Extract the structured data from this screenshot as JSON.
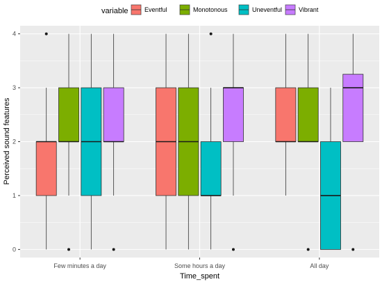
{
  "chart_data": {
    "type": "boxplot",
    "xlabel": "Time_spent",
    "ylabel": "Perceived sound features",
    "ylim": [
      -0.15,
      4.15
    ],
    "yticks": [
      0,
      1,
      2,
      3,
      4
    ],
    "grid": true,
    "legend": {
      "title": "variable",
      "position": "top"
    },
    "categories": [
      "Few minutes a day",
      "Some hours a day",
      "All day"
    ],
    "series": [
      {
        "name": "Eventful",
        "color": "#F8766D",
        "boxes": [
          {
            "whisker_low": 0,
            "q1": 1,
            "median": 2,
            "q3": 2,
            "whisker_high": 3,
            "outliers": [
              4
            ]
          },
          {
            "whisker_low": 0,
            "q1": 1,
            "median": 2,
            "q3": 3,
            "whisker_high": 4,
            "outliers": []
          },
          {
            "whisker_low": 1,
            "q1": 2,
            "median": 2,
            "q3": 3,
            "whisker_high": 4,
            "outliers": []
          }
        ]
      },
      {
        "name": "Monotonous",
        "color": "#7CAE00",
        "boxes": [
          {
            "whisker_low": 1,
            "q1": 2,
            "median": 2,
            "q3": 3,
            "whisker_high": 4,
            "outliers": [
              0
            ]
          },
          {
            "whisker_low": 0,
            "q1": 1,
            "median": 2,
            "q3": 3,
            "whisker_high": 4,
            "outliers": []
          },
          {
            "whisker_low": 2,
            "q1": 2,
            "median": 2,
            "q3": 3,
            "whisker_high": 4,
            "outliers": [
              0
            ]
          }
        ]
      },
      {
        "name": "Uneventful",
        "color": "#00BFC4",
        "boxes": [
          {
            "whisker_low": 0,
            "q1": 1,
            "median": 2,
            "q3": 3,
            "whisker_high": 4,
            "outliers": []
          },
          {
            "whisker_low": 0,
            "q1": 1,
            "median": 1,
            "q3": 2,
            "whisker_high": 3,
            "outliers": [
              4
            ]
          },
          {
            "whisker_low": 0,
            "q1": 0,
            "median": 1,
            "q3": 2,
            "whisker_high": 3,
            "outliers": []
          }
        ]
      },
      {
        "name": "Vibrant",
        "color": "#C77CFF",
        "boxes": [
          {
            "whisker_low": 1,
            "q1": 2,
            "median": 2,
            "q3": 3,
            "whisker_high": 4,
            "outliers": [
              0
            ]
          },
          {
            "whisker_low": 1,
            "q1": 2,
            "median": 3,
            "q3": 3,
            "whisker_high": 4,
            "outliers": [
              0
            ]
          },
          {
            "whisker_low": 2,
            "q1": 2,
            "median": 3,
            "q3": 3.25,
            "whisker_high": 4,
            "outliers": [
              0
            ]
          }
        ]
      }
    ]
  }
}
